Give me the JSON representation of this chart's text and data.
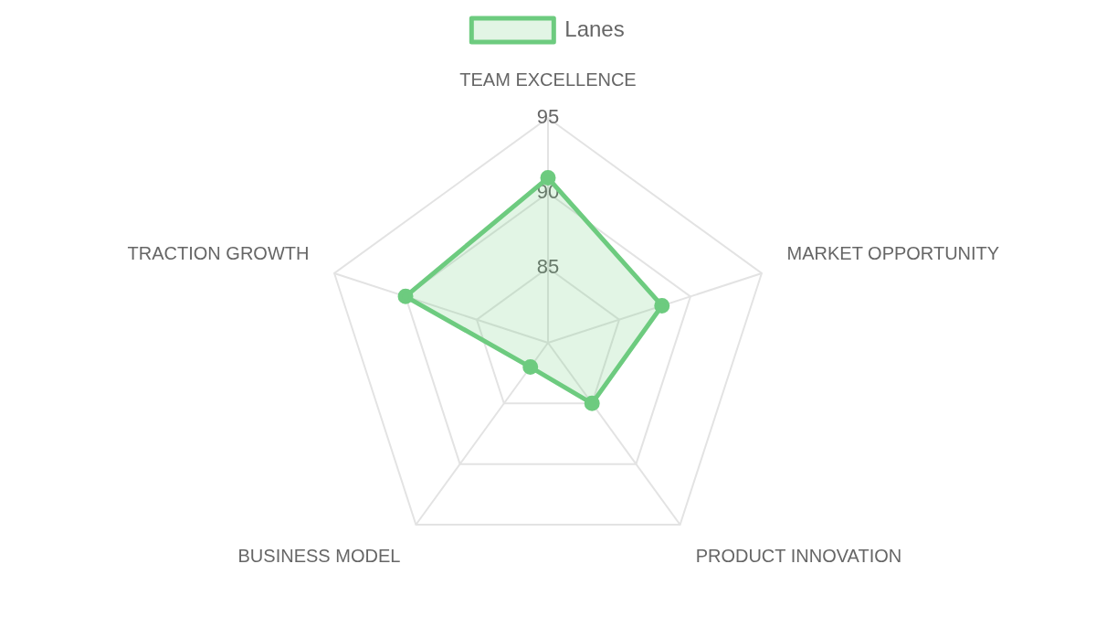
{
  "chart_data": {
    "type": "radar",
    "categories": [
      "TEAM EXCELLENCE",
      "MARKET OPPORTUNITY",
      "PRODUCT INNOVATION",
      "BUSINESS MODEL",
      "TRACTION GROWTH"
    ],
    "series": [
      {
        "name": "Lanes",
        "color": "#6dcb7f",
        "values": [
          91,
          88,
          85,
          82,
          90
        ]
      }
    ],
    "ylim": [
      80,
      95
    ],
    "yticks": [
      85,
      90,
      95
    ],
    "grid": true,
    "legend": "top",
    "marker": "circle"
  }
}
